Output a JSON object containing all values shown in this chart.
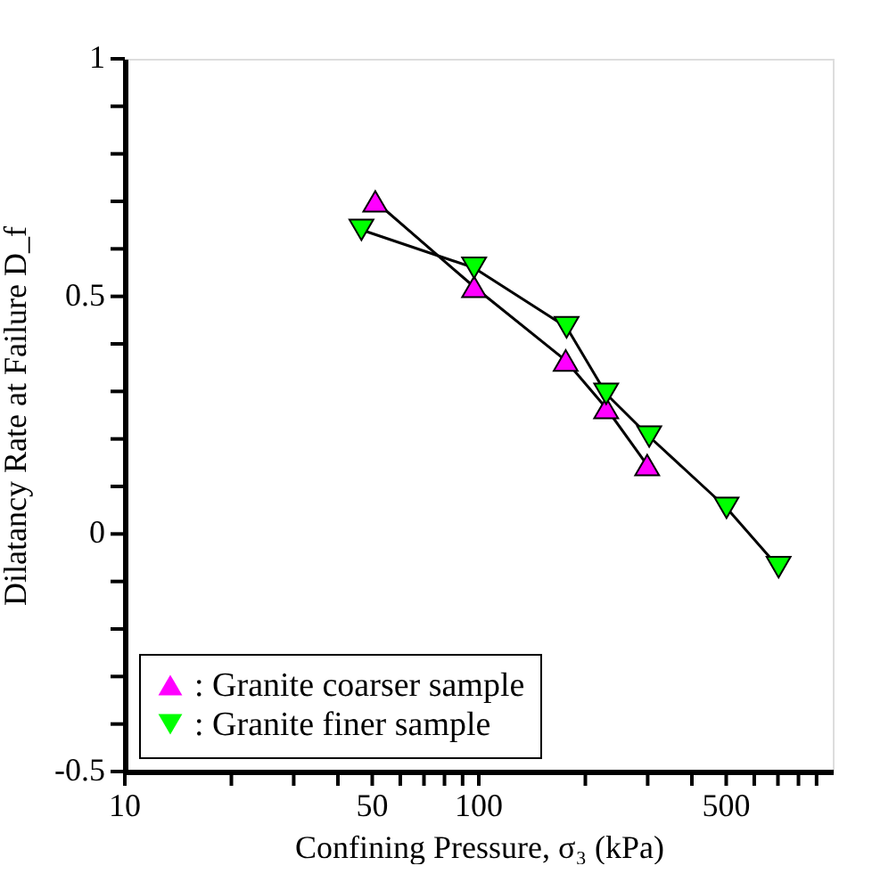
{
  "chart_data": {
    "type": "line",
    "xlabel": "Confining Pressure, σ₃ (kPa)",
    "ylabel": "Dilatancy Rate at Failure D_f",
    "log": "x",
    "xlim": [
      10,
      1000
    ],
    "ylim": [
      -0.5,
      1
    ],
    "xticks": [
      10,
      {
        "value": 20,
        "label": null
      },
      {
        "value": 30,
        "label": null
      },
      {
        "value": 40,
        "label": null
      },
      50,
      {
        "value": 60,
        "label": null
      },
      {
        "value": 70,
        "label": null
      },
      {
        "value": 80,
        "label": null
      },
      {
        "value": 90,
        "label": null
      },
      100,
      {
        "value": 200,
        "label": null
      },
      {
        "value": 300,
        "label": null
      },
      {
        "value": 400,
        "label": null
      },
      500,
      {
        "value": 600,
        "label": null
      },
      {
        "value": 700,
        "label": null
      },
      {
        "value": 800,
        "label": null
      },
      {
        "value": 900,
        "label": null
      }
    ],
    "yticks": [
      -0.5,
      {
        "value": -0.4,
        "label": null
      },
      {
        "value": -0.3,
        "label": null
      },
      {
        "value": -0.2,
        "label": null
      },
      {
        "value": -0.1,
        "label": null
      },
      0,
      {
        "value": 0.1,
        "label": null
      },
      {
        "value": 0.2,
        "label": null
      },
      {
        "value": 0.3,
        "label": null
      },
      {
        "value": 0.4,
        "label": null
      },
      0.5,
      {
        "value": 0.6,
        "label": null
      },
      {
        "value": 0.7,
        "label": null
      },
      {
        "value": 0.8,
        "label": null
      },
      {
        "value": 0.9,
        "label": null
      },
      1
    ],
    "legend": "bottom left",
    "line_style": "solid",
    "series": [
      {
        "name": ": Granite coarser sample",
        "color": "#ff00ff",
        "marker": "triangle",
        "x": [
          51,
          97,
          176,
          229,
          299
        ],
        "values": [
          0.7,
          0.52,
          0.365,
          0.265,
          0.145
        ]
      },
      {
        "name": ": Granite finer sample",
        "color": "#00ff00",
        "marker": "triangle-down",
        "x": [
          46.6,
          97,
          177,
          229,
          303,
          501,
          703
        ],
        "values": [
          0.64,
          0.56,
          0.435,
          0.295,
          0.205,
          0.055,
          -0.07
        ]
      }
    ]
  }
}
